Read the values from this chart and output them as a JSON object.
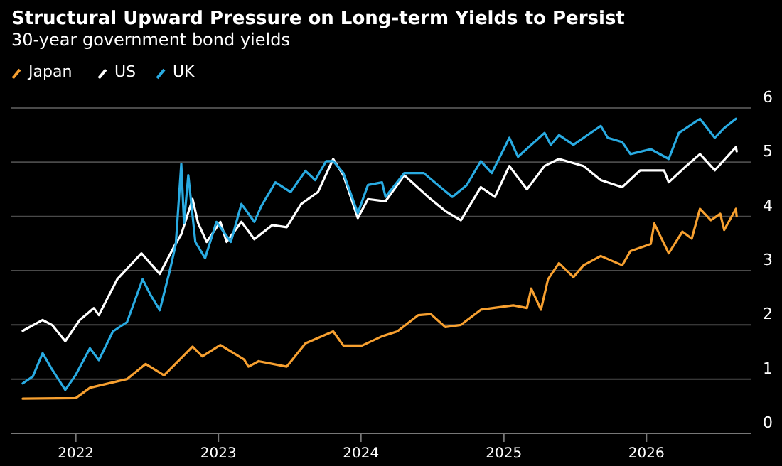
{
  "chart_data": {
    "type": "line",
    "title": "Structural Upward Pressure on Long-term Yields to Persist",
    "subtitle": "30-year government bond yields",
    "legend": "top left",
    "grid": "y",
    "xlim": [
      "2021-07-20",
      "2026-09-25"
    ],
    "ylim": [
      0,
      6
    ],
    "yticks": [
      0,
      1,
      2,
      3,
      4,
      5,
      6
    ],
    "xticks": [
      {
        "value": "2022-01-01",
        "label": "2022"
      },
      {
        "value": "2023-01-01",
        "label": "2023"
      },
      {
        "value": "2024-01-01",
        "label": "2024"
      },
      {
        "value": "2025-01-01",
        "label": "2025"
      },
      {
        "value": "2026-01-01",
        "label": "2026"
      }
    ],
    "series": [
      {
        "name": "Japan",
        "color": "#f7a030",
        "x": [
          "2021-08-18",
          "2022-01-01",
          "2022-02-06",
          "2022-03-01",
          "2022-05-12",
          "2022-06-29",
          "2022-08-15",
          "2022-10-27",
          "2022-11-21",
          "2023-01-06",
          "2023-03-08",
          "2023-03-19",
          "2023-04-14",
          "2023-06-25",
          "2023-08-12",
          "2023-10-22",
          "2023-11-17",
          "2024-01-04",
          "2024-02-24",
          "2024-04-03",
          "2024-05-27",
          "2024-06-28",
          "2024-08-04",
          "2024-09-13",
          "2024-11-03",
          "2025-01-25",
          "2025-03-01",
          "2025-03-12",
          "2025-04-06",
          "2025-04-24",
          "2025-05-22",
          "2025-06-28",
          "2025-07-24",
          "2025-09-06",
          "2025-10-31",
          "2025-11-21",
          "2026-01-12",
          "2026-01-21",
          "2026-02-27",
          "2026-04-03",
          "2026-04-27",
          "2026-05-18",
          "2026-06-15",
          "2026-07-09",
          "2026-07-19",
          "2026-08-18",
          "2026-08-20"
        ],
        "values": [
          0.64,
          0.65,
          0.84,
          0.88,
          1.0,
          1.28,
          1.07,
          1.6,
          1.42,
          1.63,
          1.36,
          1.23,
          1.33,
          1.23,
          1.66,
          1.88,
          1.62,
          1.62,
          1.79,
          1.88,
          2.18,
          2.2,
          1.96,
          2.0,
          2.28,
          2.36,
          2.31,
          2.67,
          2.28,
          2.84,
          3.14,
          2.88,
          3.1,
          3.27,
          3.1,
          3.36,
          3.49,
          3.87,
          3.32,
          3.72,
          3.59,
          4.14,
          3.93,
          4.05,
          3.75,
          4.14,
          4.0
        ]
      },
      {
        "name": "US",
        "color": "#ffffff",
        "x": [
          "2021-08-18",
          "2021-10-08",
          "2021-11-01",
          "2021-12-05",
          "2022-01-11",
          "2022-02-16",
          "2022-03-01",
          "2022-04-17",
          "2022-06-18",
          "2022-08-04",
          "2022-09-10",
          "2022-09-28",
          "2022-10-27",
          "2022-11-10",
          "2022-12-02",
          "2023-01-06",
          "2023-01-22",
          "2023-03-01",
          "2023-04-03",
          "2023-05-19",
          "2023-06-25",
          "2023-08-01",
          "2023-09-13",
          "2023-10-22",
          "2023-11-17",
          "2023-12-24",
          "2024-01-19",
          "2024-03-04",
          "2024-04-21",
          "2024-06-21",
          "2024-08-04",
          "2024-09-13",
          "2024-11-03",
          "2024-12-09",
          "2025-01-15",
          "2025-03-01",
          "2025-04-15",
          "2025-05-22",
          "2025-07-24",
          "2025-09-06",
          "2025-10-31",
          "2025-12-16",
          "2026-02-15",
          "2026-02-27",
          "2026-04-13",
          "2026-05-18",
          "2026-06-25",
          "2026-08-18",
          "2026-08-20"
        ],
        "values": [
          1.89,
          2.09,
          2.0,
          1.7,
          2.09,
          2.31,
          2.18,
          2.84,
          3.32,
          2.94,
          3.45,
          3.67,
          4.32,
          3.88,
          3.53,
          3.9,
          3.53,
          3.9,
          3.58,
          3.84,
          3.8,
          4.23,
          4.45,
          5.06,
          4.76,
          3.97,
          4.32,
          4.28,
          4.76,
          4.36,
          4.1,
          3.93,
          4.54,
          4.36,
          4.93,
          4.5,
          4.93,
          5.06,
          4.93,
          4.67,
          4.54,
          4.85,
          4.85,
          4.63,
          4.93,
          5.15,
          4.85,
          5.28,
          5.2
        ]
      },
      {
        "name": "UK",
        "color": "#29abe2",
        "x": [
          "2021-08-18",
          "2021-09-13",
          "2021-10-08",
          "2021-11-01",
          "2021-12-05",
          "2022-01-01",
          "2022-02-06",
          "2022-03-01",
          "2022-04-06",
          "2022-05-12",
          "2022-06-21",
          "2022-07-10",
          "2022-08-04",
          "2022-08-30",
          "2022-09-14",
          "2022-09-28",
          "2022-10-05",
          "2022-10-16",
          "2022-11-03",
          "2022-11-28",
          "2022-12-27",
          "2023-02-02",
          "2023-03-01",
          "2023-04-03",
          "2023-04-21",
          "2023-05-27",
          "2023-07-05",
          "2023-08-12",
          "2023-09-06",
          "2023-10-04",
          "2023-10-22",
          "2023-11-17",
          "2023-12-24",
          "2024-01-19",
          "2024-02-24",
          "2024-03-04",
          "2024-04-21",
          "2024-06-10",
          "2024-07-16",
          "2024-08-22",
          "2024-09-28",
          "2024-11-03",
          "2024-12-01",
          "2025-01-15",
          "2025-02-06",
          "2025-04-15",
          "2025-05-01",
          "2025-05-22",
          "2025-06-28",
          "2025-09-06",
          "2025-09-24",
          "2025-10-31",
          "2025-11-21",
          "2026-01-12",
          "2026-02-27",
          "2026-03-25",
          "2026-05-18",
          "2026-06-25",
          "2026-07-19",
          "2026-08-18"
        ],
        "values": [
          0.92,
          1.05,
          1.48,
          1.18,
          0.8,
          1.08,
          1.57,
          1.35,
          1.88,
          2.05,
          2.84,
          2.57,
          2.27,
          3.01,
          3.49,
          4.97,
          3.88,
          4.76,
          3.53,
          3.23,
          3.9,
          3.53,
          4.23,
          3.9,
          4.19,
          4.63,
          4.45,
          4.84,
          4.67,
          5.02,
          5.02,
          4.8,
          4.06,
          4.58,
          4.63,
          4.36,
          4.8,
          4.8,
          4.58,
          4.36,
          4.58,
          5.02,
          4.8,
          5.45,
          5.1,
          5.54,
          5.32,
          5.5,
          5.32,
          5.67,
          5.45,
          5.37,
          5.15,
          5.24,
          5.06,
          5.54,
          5.8,
          5.45,
          5.63,
          5.8
        ]
      }
    ]
  }
}
